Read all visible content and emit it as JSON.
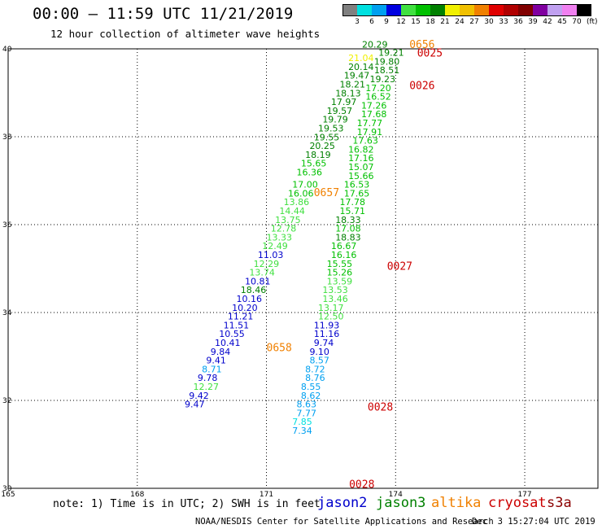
{
  "title": "00:00 – 11:59 UTC 11/21/2019",
  "subtitle": "12 hour collection of altimeter wave heights",
  "scale": {
    "colors": [
      "#808080",
      "#00e0e0",
      "#00a0f0",
      "#0000e0",
      "#40e040",
      "#00c000",
      "#008000",
      "#f0f000",
      "#f0c000",
      "#f08000",
      "#e00000",
      "#b00000",
      "#800000",
      "#8000a0",
      "#c0a0f0",
      "#f080f0",
      "#000000"
    ],
    "labels": [
      "3",
      "6",
      "9",
      "12",
      "15",
      "18",
      "21",
      "24",
      "27",
      "30",
      "33",
      "36",
      "39",
      "42",
      "45",
      "70"
    ],
    "unit": "(ft)"
  },
  "axes": {
    "y_ticks": [
      40,
      38,
      36,
      34,
      32,
      30
    ],
    "x_ticks": [
      165,
      168,
      171,
      174,
      177
    ],
    "x_labels": [
      "165",
      "168",
      "171",
      "174",
      "177"
    ],
    "y_labels": [
      "40",
      "38",
      "36",
      "34",
      "32",
      "30"
    ]
  },
  "note": "note: 1) Time is in UTC; 2) SWH is in feet",
  "satellites": [
    {
      "name": "jason2",
      "color": "#0000cc"
    },
    {
      "name": "jason3",
      "color": "#008000"
    },
    {
      "name": "altika",
      "color": "#f08000"
    },
    {
      "name": "cryosat",
      "color": "#cc0000"
    },
    {
      "name": "s3a",
      "color": "#8b0000"
    }
  ],
  "credit": "NOAA/NESDIS Center for Satellite Applications and Research",
  "credit_date": "Dec  3 15:27:04 UTC 2019",
  "times": [
    {
      "text": "0656",
      "lon": 174.32,
      "lat": 40.02,
      "color": "#f08000"
    },
    {
      "text": "0025",
      "lon": 174.5,
      "lat": 39.82,
      "color": "#cc0000"
    },
    {
      "text": "0026",
      "lon": 174.32,
      "lat": 39.08,
      "color": "#cc0000"
    },
    {
      "text": "0657",
      "lon": 172.1,
      "lat": 36.65,
      "color": "#f08000"
    },
    {
      "text": "0027",
      "lon": 173.8,
      "lat": 34.97,
      "color": "#cc0000"
    },
    {
      "text": "0658",
      "lon": 171.0,
      "lat": 33.12,
      "color": "#f08000"
    },
    {
      "text": "0028",
      "lon": 173.35,
      "lat": 31.77,
      "color": "#cc0000"
    },
    {
      "text": "0028",
      "lon": 172.92,
      "lat": 30.01,
      "color": "#cc0000"
    }
  ],
  "readings": [
    {
      "v": "20.29",
      "lon": 173.22,
      "lat": 40.03,
      "c": "#008000"
    },
    {
      "v": "19.21",
      "lon": 173.6,
      "lat": 39.84,
      "c": "#008000"
    },
    {
      "v": "21.04",
      "lon": 172.9,
      "lat": 39.72,
      "c": "#f0f000"
    },
    {
      "v": "19.80",
      "lon": 173.5,
      "lat": 39.64,
      "c": "#008000"
    },
    {
      "v": "20.14",
      "lon": 172.9,
      "lat": 39.52,
      "c": "#008000"
    },
    {
      "v": "18.51",
      "lon": 173.5,
      "lat": 39.44,
      "c": "#008000"
    },
    {
      "v": "19.47",
      "lon": 172.8,
      "lat": 39.32,
      "c": "#008000"
    },
    {
      "v": "19.23",
      "lon": 173.4,
      "lat": 39.24,
      "c": "#008000"
    },
    {
      "v": "18.21",
      "lon": 172.7,
      "lat": 39.12,
      "c": "#008000"
    },
    {
      "v": "17.20",
      "lon": 173.3,
      "lat": 39.04,
      "c": "#00c000"
    },
    {
      "v": "18.13",
      "lon": 172.6,
      "lat": 38.92,
      "c": "#008000"
    },
    {
      "v": "16.52",
      "lon": 173.3,
      "lat": 38.84,
      "c": "#00c000"
    },
    {
      "v": "17.97",
      "lon": 172.5,
      "lat": 38.72,
      "c": "#008000"
    },
    {
      "v": "17.26",
      "lon": 173.2,
      "lat": 38.64,
      "c": "#00c000"
    },
    {
      "v": "19.57",
      "lon": 172.4,
      "lat": 38.52,
      "c": "#008000"
    },
    {
      "v": "17.68",
      "lon": 173.2,
      "lat": 38.44,
      "c": "#00c000"
    },
    {
      "v": "19.79",
      "lon": 172.3,
      "lat": 38.32,
      "c": "#008000"
    },
    {
      "v": "17.77",
      "lon": 173.1,
      "lat": 38.24,
      "c": "#00c000"
    },
    {
      "v": "19.53",
      "lon": 172.2,
      "lat": 38.12,
      "c": "#008000"
    },
    {
      "v": "17.91",
      "lon": 173.1,
      "lat": 38.04,
      "c": "#00c000"
    },
    {
      "v": "19.55",
      "lon": 172.1,
      "lat": 37.92,
      "c": "#008000"
    },
    {
      "v": "17.63",
      "lon": 173.0,
      "lat": 37.84,
      "c": "#00c000"
    },
    {
      "v": "20.25",
      "lon": 172.0,
      "lat": 37.72,
      "c": "#008000"
    },
    {
      "v": "16.82",
      "lon": 172.9,
      "lat": 37.64,
      "c": "#00c000"
    },
    {
      "v": "18.19",
      "lon": 171.9,
      "lat": 37.52,
      "c": "#008000"
    },
    {
      "v": "17.16",
      "lon": 172.9,
      "lat": 37.44,
      "c": "#00c000"
    },
    {
      "v": "15.65",
      "lon": 171.8,
      "lat": 37.32,
      "c": "#00c000"
    },
    {
      "v": "15.07",
      "lon": 172.9,
      "lat": 37.24,
      "c": "#00c000"
    },
    {
      "v": "16.36",
      "lon": 171.7,
      "lat": 37.12,
      "c": "#00c000"
    },
    {
      "v": "15.66",
      "lon": 172.9,
      "lat": 37.04,
      "c": "#00c000"
    },
    {
      "v": "17.00",
      "lon": 171.6,
      "lat": 36.84,
      "c": "#00c000"
    },
    {
      "v": "16.53",
      "lon": 172.8,
      "lat": 36.84,
      "c": "#00c000"
    },
    {
      "v": "16.06",
      "lon": 171.5,
      "lat": 36.64,
      "c": "#00c000"
    },
    {
      "v": "17.65",
      "lon": 172.8,
      "lat": 36.64,
      "c": "#00c000"
    },
    {
      "v": "13.86",
      "lon": 171.4,
      "lat": 36.44,
      "c": "#40e040"
    },
    {
      "v": "17.78",
      "lon": 172.7,
      "lat": 36.44,
      "c": "#00c000"
    },
    {
      "v": "14.44",
      "lon": 171.3,
      "lat": 36.24,
      "c": "#40e040"
    },
    {
      "v": "15.71",
      "lon": 172.7,
      "lat": 36.24,
      "c": "#00c000"
    },
    {
      "v": "13.75",
      "lon": 171.2,
      "lat": 36.04,
      "c": "#40e040"
    },
    {
      "v": "18.33",
      "lon": 172.6,
      "lat": 36.04,
      "c": "#008000"
    },
    {
      "v": "12.78",
      "lon": 171.1,
      "lat": 35.84,
      "c": "#40e040"
    },
    {
      "v": "17.08",
      "lon": 172.6,
      "lat": 35.84,
      "c": "#00c000"
    },
    {
      "v": "13.33",
      "lon": 171.0,
      "lat": 35.64,
      "c": "#40e040"
    },
    {
      "v": "18.83",
      "lon": 172.6,
      "lat": 35.64,
      "c": "#008000"
    },
    {
      "v": "12.49",
      "lon": 170.9,
      "lat": 35.44,
      "c": "#40e040"
    },
    {
      "v": "16.67",
      "lon": 172.5,
      "lat": 35.44,
      "c": "#00c000"
    },
    {
      "v": "11.03",
      "lon": 170.8,
      "lat": 35.24,
      "c": "#0000cc"
    },
    {
      "v": "16.16",
      "lon": 172.5,
      "lat": 35.24,
      "c": "#00c000"
    },
    {
      "v": "12.29",
      "lon": 170.7,
      "lat": 35.04,
      "c": "#40e040"
    },
    {
      "v": "15.55",
      "lon": 172.4,
      "lat": 35.04,
      "c": "#00c000"
    },
    {
      "v": "13.74",
      "lon": 170.6,
      "lat": 34.84,
      "c": "#40e040"
    },
    {
      "v": "15.26",
      "lon": 172.4,
      "lat": 34.84,
      "c": "#00c000"
    },
    {
      "v": "10.81",
      "lon": 170.5,
      "lat": 34.64,
      "c": "#0000cc"
    },
    {
      "v": "13.59",
      "lon": 172.4,
      "lat": 34.64,
      "c": "#40e040"
    },
    {
      "v": "18.46",
      "lon": 170.4,
      "lat": 34.44,
      "c": "#008000"
    },
    {
      "v": "13.53",
      "lon": 172.3,
      "lat": 34.44,
      "c": "#40e040"
    },
    {
      "v": "10.16",
      "lon": 170.3,
      "lat": 34.24,
      "c": "#0000cc"
    },
    {
      "v": "13.46",
      "lon": 172.3,
      "lat": 34.24,
      "c": "#40e040"
    },
    {
      "v": "10.20",
      "lon": 170.2,
      "lat": 34.04,
      "c": "#0000cc"
    },
    {
      "v": "13.17",
      "lon": 172.2,
      "lat": 34.04,
      "c": "#40e040"
    },
    {
      "v": "11.21",
      "lon": 170.1,
      "lat": 33.84,
      "c": "#0000cc"
    },
    {
      "v": "12.50",
      "lon": 172.2,
      "lat": 33.84,
      "c": "#40e040"
    },
    {
      "v": "11.51",
      "lon": 170.0,
      "lat": 33.64,
      "c": "#0000cc"
    },
    {
      "v": "11.93",
      "lon": 172.1,
      "lat": 33.64,
      "c": "#0000cc"
    },
    {
      "v": "10.55",
      "lon": 169.9,
      "lat": 33.44,
      "c": "#0000cc"
    },
    {
      "v": "11.16",
      "lon": 172.1,
      "lat": 33.44,
      "c": "#0000cc"
    },
    {
      "v": "10.41",
      "lon": 169.8,
      "lat": 33.24,
      "c": "#0000cc"
    },
    {
      "v": "9.74",
      "lon": 172.1,
      "lat": 33.24,
      "c": "#0000cc"
    },
    {
      "v": "9.84",
      "lon": 169.7,
      "lat": 33.04,
      "c": "#0000cc"
    },
    {
      "v": "9.10",
      "lon": 172.0,
      "lat": 33.04,
      "c": "#0000cc"
    },
    {
      "v": "9.41",
      "lon": 169.6,
      "lat": 32.84,
      "c": "#0000cc"
    },
    {
      "v": "8.57",
      "lon": 172.0,
      "lat": 32.84,
      "c": "#00a0f0"
    },
    {
      "v": "8.71",
      "lon": 169.5,
      "lat": 32.64,
      "c": "#00a0f0"
    },
    {
      "v": "8.72",
      "lon": 171.9,
      "lat": 32.64,
      "c": "#00a0f0"
    },
    {
      "v": "9.78",
      "lon": 169.4,
      "lat": 32.44,
      "c": "#0000cc"
    },
    {
      "v": "8.76",
      "lon": 171.9,
      "lat": 32.44,
      "c": "#00a0f0"
    },
    {
      "v": "12.27",
      "lon": 169.3,
      "lat": 32.24,
      "c": "#40e040"
    },
    {
      "v": "8.55",
      "lon": 171.8,
      "lat": 32.24,
      "c": "#00a0f0"
    },
    {
      "v": "9.42",
      "lon": 169.2,
      "lat": 32.04,
      "c": "#0000cc"
    },
    {
      "v": "8.62",
      "lon": 171.8,
      "lat": 32.04,
      "c": "#00a0f0"
    },
    {
      "v": "9.47",
      "lon": 169.1,
      "lat": 31.84,
      "c": "#0000cc"
    },
    {
      "v": "8.63",
      "lon": 171.7,
      "lat": 31.84,
      "c": "#00a0f0"
    },
    {
      "v": "7.77",
      "lon": 171.7,
      "lat": 31.64,
      "c": "#00a0f0"
    },
    {
      "v": "7.85",
      "lon": 171.6,
      "lat": 31.44,
      "c": "#00e0e0"
    },
    {
      "v": "7.34",
      "lon": 171.6,
      "lat": 31.24,
      "c": "#00a0f0"
    }
  ]
}
